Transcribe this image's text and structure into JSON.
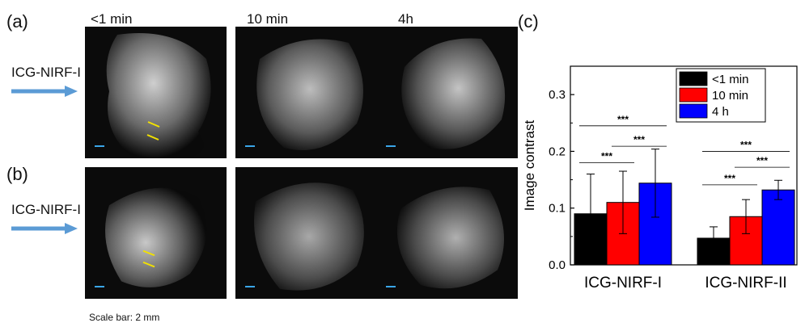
{
  "panels": {
    "a_label": "(a)",
    "b_label": "(b)",
    "c_label": "(c)"
  },
  "time_labels": [
    "<1 min",
    "10 min",
    "4h"
  ],
  "row_labels": {
    "a": "ICG-NIRF-I",
    "b": "ICG-NIRF-I"
  },
  "scale_bar_text": "Scale bar: 2 mm",
  "colors": {
    "arrow": "#5b9bd5",
    "scale_bar": "#3aa6e8",
    "marker": "#f2e100"
  },
  "chart_data": {
    "type": "bar",
    "categories": [
      "ICG-NIRF-I",
      "ICG-NIRF-II"
    ],
    "series": [
      {
        "name": "<1 min",
        "color": "#000000",
        "values": [
          0.09,
          0.047
        ],
        "errors": [
          0.07,
          0.02
        ]
      },
      {
        "name": "10 min",
        "color": "#ff0000",
        "values": [
          0.11,
          0.085
        ],
        "errors": [
          0.055,
          0.03
        ]
      },
      {
        "name": "4 h",
        "color": "#0000ff",
        "values": [
          0.144,
          0.132
        ],
        "errors": [
          0.06,
          0.017
        ]
      }
    ],
    "ylabel": "Image contrast",
    "xlabel": "",
    "ylim": [
      0,
      0.35
    ],
    "yticks": [
      "0.0",
      "0.1",
      "0.2",
      "0.3"
    ],
    "legend_position": "top-right",
    "significance": [
      {
        "group": 0,
        "from": 0,
        "to": 2,
        "label": "***",
        "y": 0.245
      },
      {
        "group": 0,
        "from": 0,
        "to": 1,
        "label": "***",
        "y": 0.18
      },
      {
        "group": 0,
        "from": 1,
        "to": 2,
        "label": "***",
        "y": 0.209
      },
      {
        "group": 1,
        "from": 0,
        "to": 2,
        "label": "***",
        "y": 0.2
      },
      {
        "group": 1,
        "from": 0,
        "to": 1,
        "label": "***",
        "y": 0.141
      },
      {
        "group": 1,
        "from": 1,
        "to": 2,
        "label": "***",
        "y": 0.172
      }
    ]
  }
}
